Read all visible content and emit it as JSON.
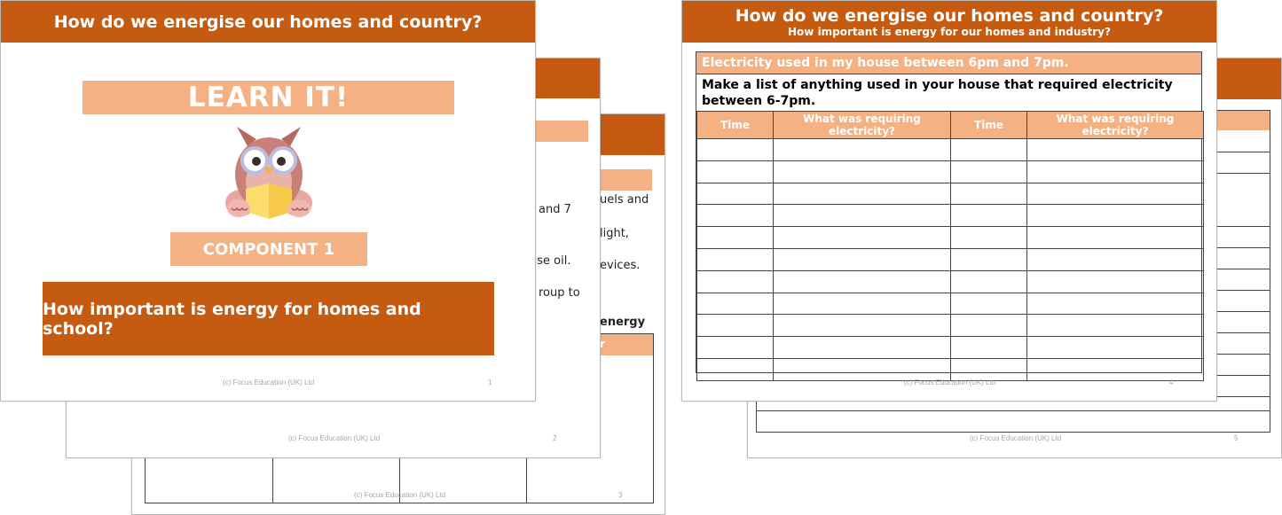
{
  "footer_text": "(c) Focus Education (UK) Ltd",
  "slide3": {
    "page_number": "3",
    "snippets": [
      "uels and",
      "light,",
      "evices.",
      "energy",
      "r"
    ]
  },
  "slide2": {
    "page_number": "2",
    "snippets": [
      "and 7",
      "use oil.",
      "roup to"
    ]
  },
  "slide1": {
    "header": "How do we energise our homes and country?",
    "learn_it": "LEARN IT!",
    "component": "COMPONENT 1",
    "question": "How important is energy for homes and school?",
    "page_number": "1"
  },
  "slide5": {
    "page_number": "5"
  },
  "slide4": {
    "header": "How do we energise our homes and country?",
    "subheader": "How important is energy for our homes and industry?",
    "table_title": "Electricity used in my house between 6pm and 7pm.",
    "instruction": "Make a list of anything used in your house that required electricity between 6-7pm.",
    "columns": [
      "Time",
      "What was requiring electricity?",
      "Time",
      "What was requiring electricity?"
    ],
    "page_number": "4"
  },
  "colors": {
    "brand_orange": "#c55a11",
    "peach": "#f4b183"
  },
  "icons": [
    "owl-reading-icon"
  ]
}
